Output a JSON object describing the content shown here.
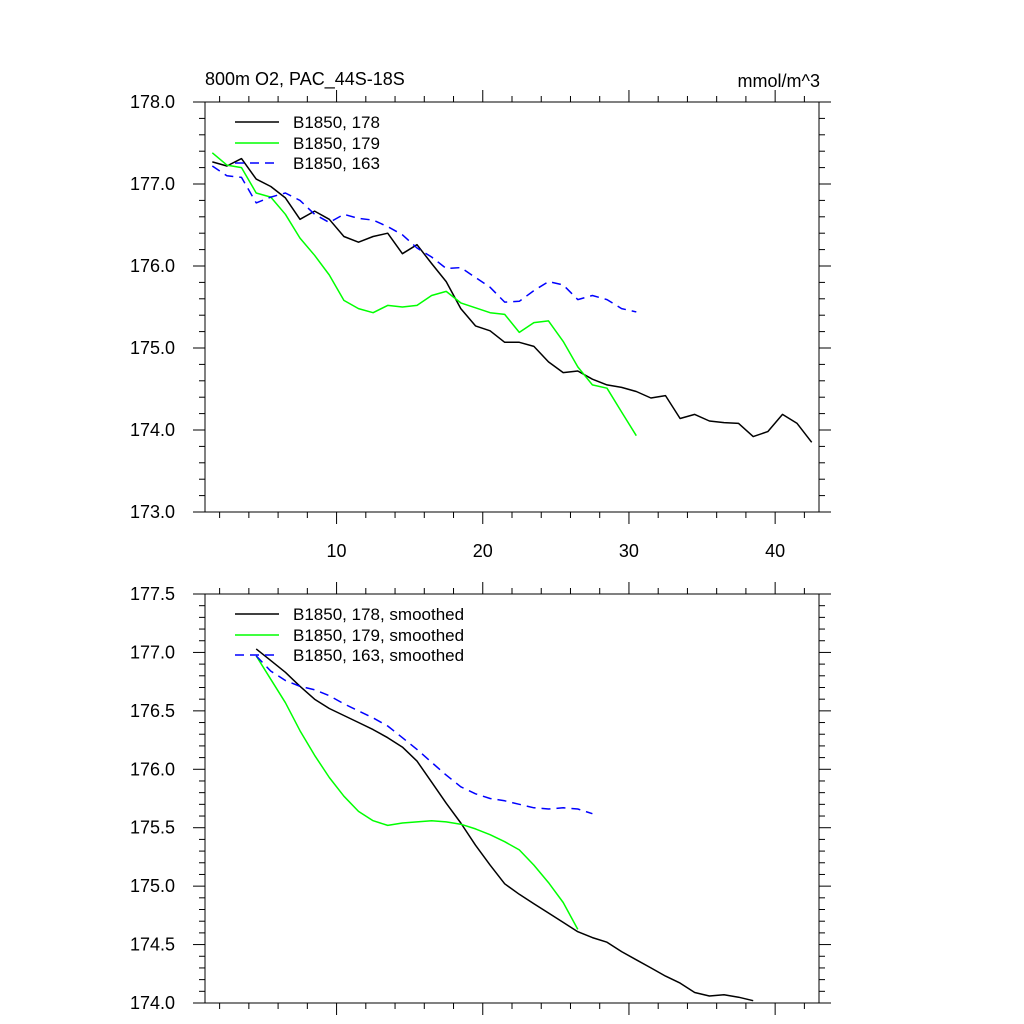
{
  "chart_data": [
    {
      "type": "line",
      "title_left": "800m O2, PAC_44S-18S",
      "title_right": "mmol/m^3",
      "xlim": [
        1,
        43
      ],
      "ylim": [
        173.0,
        178.0
      ],
      "xticks": [
        10,
        20,
        30,
        40
      ],
      "xtick_labels": [
        "10",
        "20",
        "30",
        "40"
      ],
      "yticks": [
        173.0,
        174.0,
        175.0,
        176.0,
        177.0,
        178.0
      ],
      "ytick_labels": [
        "173.0",
        "174.0",
        "175.0",
        "176.0",
        "177.0",
        "178.0"
      ],
      "legend_position": "top-left",
      "series": [
        {
          "name": "B1850, 178",
          "color": "#000000",
          "dash": "solid",
          "x_start": 1.5,
          "values": [
            177.27,
            177.22,
            177.31,
            177.06,
            176.97,
            176.83,
            176.57,
            176.67,
            176.57,
            176.36,
            176.29,
            176.36,
            176.4,
            176.15,
            176.26,
            176.03,
            175.81,
            175.48,
            175.27,
            175.21,
            175.07,
            175.07,
            175.02,
            174.83,
            174.7,
            174.72,
            174.62,
            174.55,
            174.52,
            174.47,
            174.39,
            174.42,
            174.14,
            174.19,
            174.11,
            174.09,
            174.08,
            173.92,
            173.98,
            174.19,
            174.08,
            173.85
          ]
        },
        {
          "name": "B1850, 179",
          "color": "#00ff00",
          "dash": "solid",
          "x_start": 1.5,
          "values": [
            177.38,
            177.23,
            177.2,
            176.89,
            176.84,
            176.63,
            176.34,
            176.13,
            175.89,
            175.58,
            175.48,
            175.43,
            175.52,
            175.5,
            175.52,
            175.64,
            175.69,
            175.55,
            175.49,
            175.43,
            175.41,
            175.19,
            175.31,
            175.33,
            175.08,
            174.77,
            174.55,
            174.51,
            174.22,
            173.93
          ]
        },
        {
          "name": "B1850, 163",
          "color": "#0000ff",
          "dash": "dashed",
          "x_start": 1.5,
          "values": [
            177.22,
            177.1,
            177.08,
            176.77,
            176.84,
            176.89,
            176.8,
            176.63,
            176.53,
            176.63,
            176.58,
            176.56,
            176.48,
            176.38,
            176.22,
            176.11,
            175.97,
            175.98,
            175.86,
            175.74,
            175.56,
            175.57,
            175.7,
            175.81,
            175.77,
            175.59,
            175.64,
            175.59,
            175.48,
            175.44
          ]
        }
      ]
    },
    {
      "type": "line",
      "xlim": [
        1,
        43
      ],
      "ylim": [
        174.0,
        177.5
      ],
      "xticks": [
        10,
        20,
        30,
        40
      ],
      "xtick_labels": [],
      "yticks": [
        174.0,
        174.5,
        175.0,
        175.5,
        176.0,
        176.5,
        177.0,
        177.5
      ],
      "ytick_labels": [
        "174.0",
        "174.5",
        "175.0",
        "175.5",
        "176.0",
        "176.5",
        "177.0",
        "177.5"
      ],
      "legend_position": "top-left",
      "series": [
        {
          "name": "B1850, 178, smoothed",
          "color": "#000000",
          "dash": "solid",
          "x_start": 4.5,
          "values": [
            177.03,
            176.93,
            176.83,
            176.71,
            176.6,
            176.52,
            176.46,
            176.4,
            176.34,
            176.27,
            176.19,
            176.07,
            175.89,
            175.71,
            175.54,
            175.35,
            175.18,
            175.02,
            174.93,
            174.85,
            174.77,
            174.69,
            174.61,
            174.56,
            174.52,
            174.44,
            174.37,
            174.3,
            174.23,
            174.17,
            174.09,
            174.06,
            174.07,
            174.05,
            174.02
          ]
        },
        {
          "name": "B1850, 179, smoothed",
          "color": "#00ff00",
          "dash": "solid",
          "x_start": 4.5,
          "values": [
            176.97,
            176.77,
            176.57,
            176.33,
            176.12,
            175.93,
            175.77,
            175.64,
            175.56,
            175.52,
            175.54,
            175.55,
            175.56,
            175.55,
            175.53,
            175.49,
            175.44,
            175.38,
            175.31,
            175.18,
            175.03,
            174.86,
            174.63
          ]
        },
        {
          "name": "B1850, 163, smoothed",
          "color": "#0000ff",
          "dash": "dashed",
          "x_start": 4.5,
          "values": [
            176.97,
            176.84,
            176.76,
            176.71,
            176.68,
            176.63,
            176.56,
            176.5,
            176.44,
            176.37,
            176.27,
            176.17,
            176.06,
            175.95,
            175.85,
            175.79,
            175.75,
            175.73,
            175.7,
            175.67,
            175.66,
            175.67,
            175.66,
            175.62
          ]
        }
      ]
    }
  ]
}
